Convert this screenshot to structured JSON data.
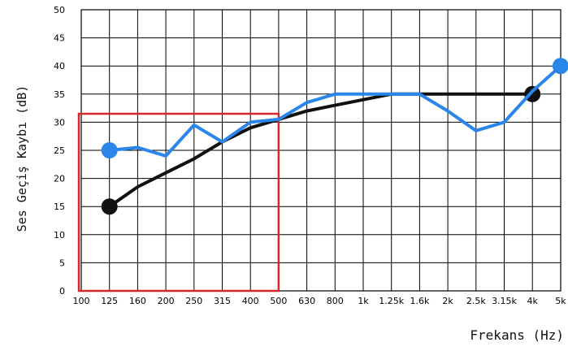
{
  "chart_data": {
    "type": "line",
    "title": "",
    "xlabel": "Frekans (Hz)",
    "ylabel": "Ses Geçiş Kaybı (dB)",
    "x_categories": [
      "100",
      "125",
      "160",
      "200",
      "250",
      "315",
      "400",
      "500",
      "630",
      "800",
      "1k",
      "1.25k",
      "1.6k",
      "2k",
      "2.5k",
      "3.15k",
      "4k",
      "5k"
    ],
    "y_ticks": [
      0,
      5,
      10,
      15,
      20,
      25,
      30,
      35,
      40,
      45,
      50
    ],
    "ylim": [
      0,
      50
    ],
    "grid": true,
    "series": [
      {
        "color": "#111111",
        "points": [
          [
            1,
            15
          ],
          [
            2,
            18.5
          ],
          [
            3,
            21
          ],
          [
            4,
            23.5
          ],
          [
            5,
            26.5
          ],
          [
            6,
            29
          ],
          [
            7,
            30.5
          ],
          [
            8,
            32
          ],
          [
            9,
            33
          ],
          [
            10,
            34
          ],
          [
            11,
            35
          ],
          [
            12,
            35
          ],
          [
            13,
            35
          ],
          [
            14,
            35
          ],
          [
            15,
            35
          ],
          [
            16,
            35
          ]
        ],
        "marked_points": [
          [
            1,
            15
          ],
          [
            16,
            35
          ]
        ]
      },
      {
        "color": "#2b86ea",
        "points": [
          [
            1,
            25
          ],
          [
            2,
            25.5
          ],
          [
            3,
            24
          ],
          [
            4,
            29.5
          ],
          [
            5,
            26.5
          ],
          [
            6,
            30
          ],
          [
            7,
            30.5
          ],
          [
            8,
            33.5
          ],
          [
            9,
            35
          ],
          [
            10,
            35
          ],
          [
            11,
            35
          ],
          [
            12,
            35
          ],
          [
            13,
            32
          ],
          [
            14,
            28.5
          ],
          [
            15,
            30
          ],
          [
            16,
            35.5
          ],
          [
            17,
            40
          ]
        ],
        "marked_points": [
          [
            1,
            25
          ],
          [
            17,
            40
          ]
        ]
      }
    ],
    "highlight_box": {
      "x_from": 0,
      "x_to": 7,
      "y_from": 0,
      "y_to": 31.5,
      "color": "#d9262b"
    }
  }
}
